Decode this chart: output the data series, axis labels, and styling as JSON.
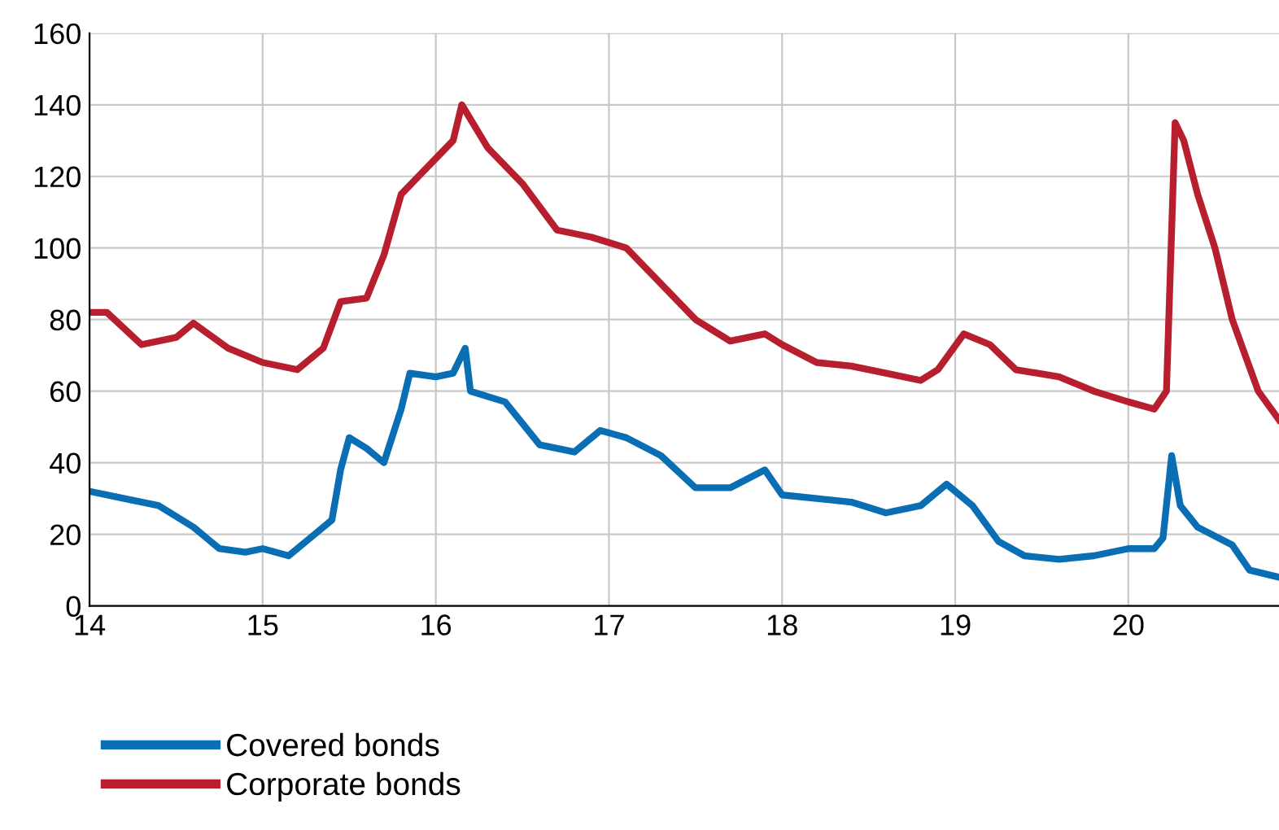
{
  "chart_data": {
    "type": "line",
    "xlim": [
      14,
      20.87
    ],
    "xticks": [
      14,
      15,
      16,
      17,
      18,
      19,
      20
    ],
    "ylim": [
      0,
      160
    ],
    "yticks": [
      0,
      20,
      40,
      60,
      80,
      100,
      120,
      140,
      160
    ],
    "grid": true,
    "legend": "bottom",
    "marker": "none",
    "line_style": "solid",
    "series": [
      {
        "name": "Covered bonds",
        "color": "#0a6eb4",
        "x": [
          14.0,
          14.2,
          14.4,
          14.6,
          14.75,
          14.9,
          15.0,
          15.15,
          15.3,
          15.4,
          15.45,
          15.5,
          15.6,
          15.7,
          15.8,
          15.85,
          16.0,
          16.1,
          16.17,
          16.2,
          16.4,
          16.6,
          16.8,
          16.95,
          17.1,
          17.3,
          17.5,
          17.7,
          17.9,
          18.0,
          18.2,
          18.4,
          18.6,
          18.8,
          18.95,
          19.1,
          19.25,
          19.4,
          19.6,
          19.8,
          20.0,
          20.15,
          20.2,
          20.25,
          20.3,
          20.4,
          20.6,
          20.7,
          20.87
        ],
        "values": [
          32,
          30,
          28,
          22,
          16,
          15,
          16,
          14,
          20,
          24,
          38,
          47,
          44,
          40,
          55,
          65,
          64,
          65,
          72,
          60,
          57,
          45,
          43,
          49,
          47,
          42,
          33,
          33,
          38,
          31,
          30,
          29,
          26,
          28,
          34,
          28,
          18,
          14,
          13,
          14,
          16,
          16,
          19,
          42,
          28,
          22,
          17,
          10,
          8
        ]
      },
      {
        "name": "Corporate bonds",
        "color": "#b81f2e",
        "x": [
          14.0,
          14.1,
          14.3,
          14.5,
          14.6,
          14.8,
          15.0,
          15.2,
          15.35,
          15.45,
          15.6,
          15.7,
          15.8,
          16.0,
          16.1,
          16.15,
          16.3,
          16.5,
          16.7,
          16.9,
          17.1,
          17.3,
          17.5,
          17.7,
          17.9,
          18.0,
          18.2,
          18.4,
          18.6,
          18.8,
          18.9,
          19.05,
          19.2,
          19.35,
          19.6,
          19.8,
          20.0,
          20.15,
          20.22,
          20.27,
          20.32,
          20.4,
          20.5,
          20.6,
          20.75,
          20.87
        ],
        "values": [
          82,
          82,
          73,
          75,
          79,
          72,
          68,
          66,
          72,
          85,
          86,
          98,
          115,
          125,
          130,
          140,
          128,
          118,
          105,
          103,
          100,
          90,
          80,
          74,
          76,
          73,
          68,
          67,
          65,
          63,
          66,
          76,
          73,
          66,
          64,
          60,
          57,
          55,
          60,
          135,
          130,
          115,
          100,
          80,
          60,
          52
        ]
      }
    ]
  }
}
